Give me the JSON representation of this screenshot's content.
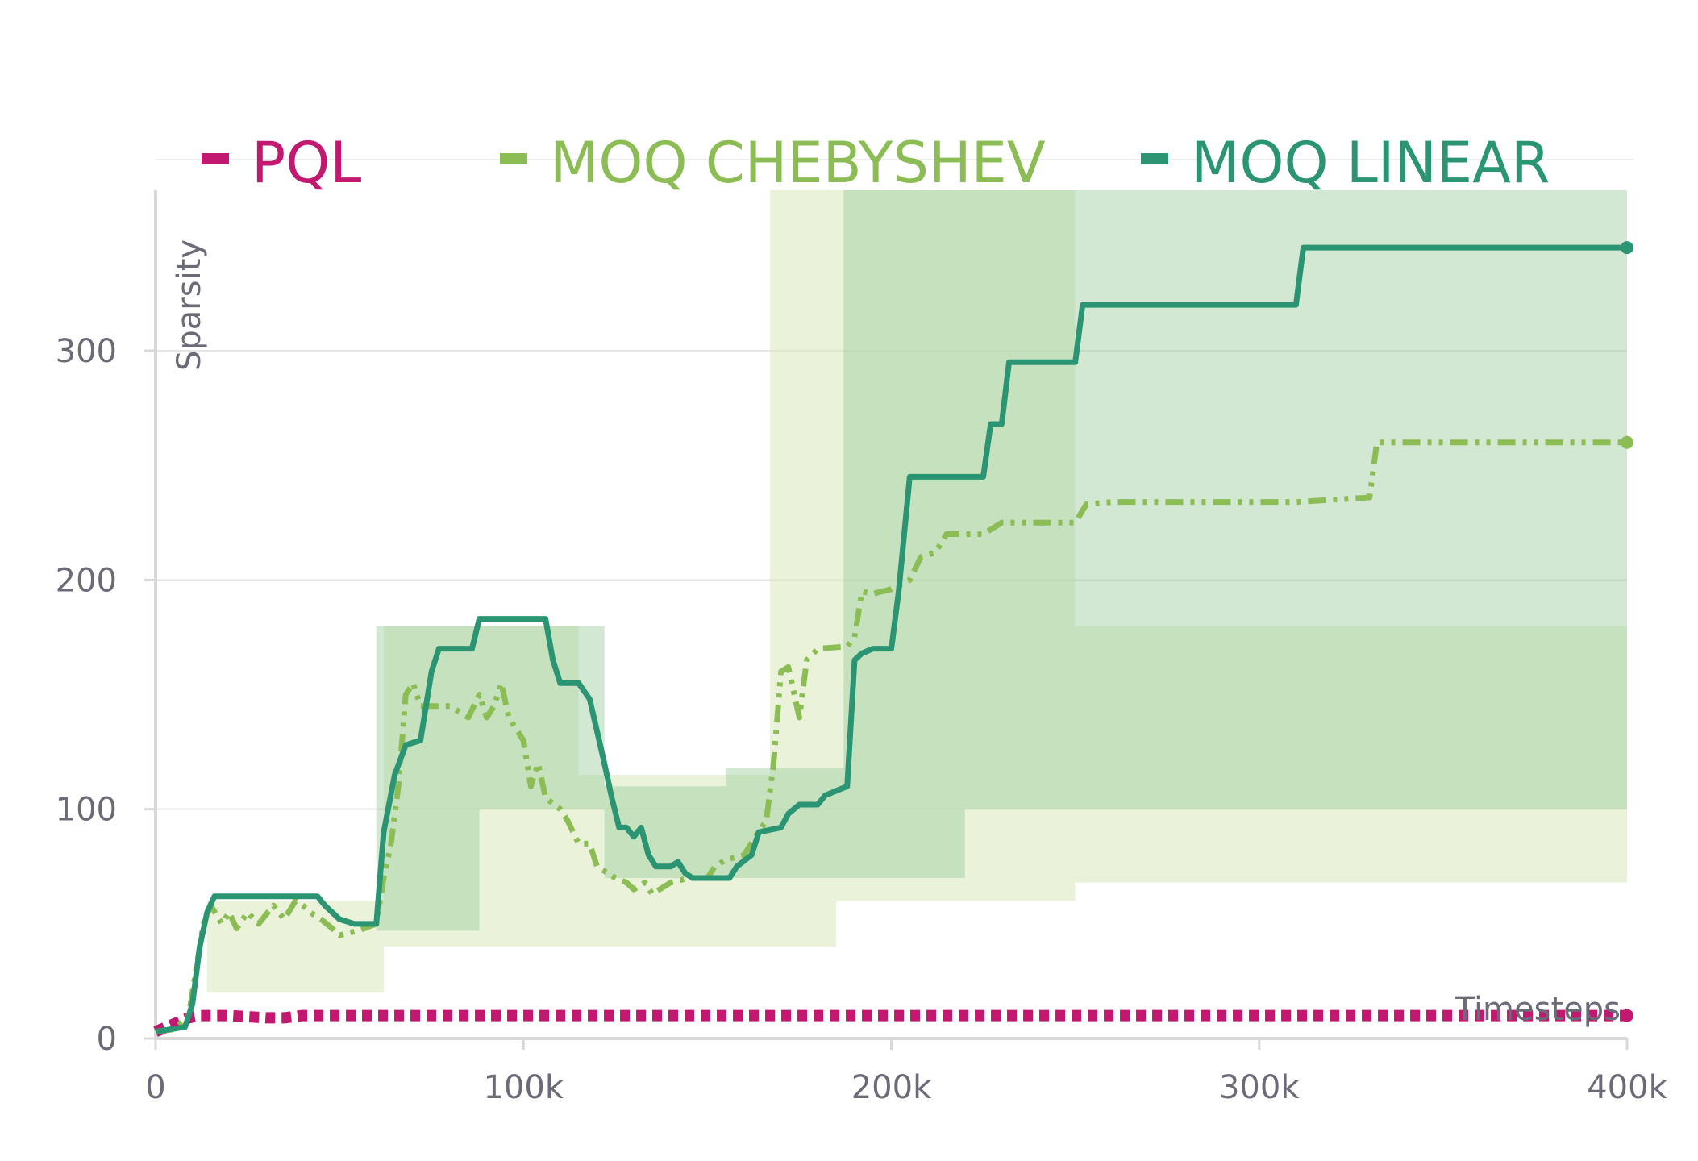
{
  "chart_data": {
    "type": "line",
    "xlabel": "Timesteps",
    "ylabel": "Sparsity",
    "xlim": [
      0,
      400000
    ],
    "ylim": [
      0,
      370
    ],
    "xticks": [
      0,
      100000,
      200000,
      300000,
      400000
    ],
    "xtick_labels": [
      "0",
      "100k",
      "200k",
      "300k",
      "400k"
    ],
    "yticks": [
      0,
      100,
      200,
      300
    ],
    "ytick_labels": [
      "0",
      "100",
      "200",
      "300"
    ],
    "grid": "horizontal",
    "legend_position": "top",
    "series": [
      {
        "name": "PQL",
        "color": "#c2186f",
        "style": "dotted",
        "points": [
          [
            0,
            3
          ],
          [
            3000,
            5
          ],
          [
            6000,
            7
          ],
          [
            9000,
            9
          ],
          [
            12000,
            10
          ],
          [
            20000,
            10
          ],
          [
            30000,
            9
          ],
          [
            35000,
            9
          ],
          [
            40000,
            10
          ],
          [
            60000,
            10
          ],
          [
            100000,
            10
          ],
          [
            200000,
            10
          ],
          [
            300000,
            10
          ],
          [
            400000,
            10
          ]
        ],
        "band": []
      },
      {
        "name": "MOQ CHEBYSHEV",
        "color": "#8cbd54",
        "style": "dashdot",
        "points": [
          [
            0,
            3
          ],
          [
            5000,
            4
          ],
          [
            9000,
            10
          ],
          [
            11000,
            30
          ],
          [
            13000,
            50
          ],
          [
            15000,
            58
          ],
          [
            18000,
            50
          ],
          [
            20000,
            55
          ],
          [
            22000,
            48
          ],
          [
            25000,
            55
          ],
          [
            28000,
            50
          ],
          [
            32000,
            58
          ],
          [
            35000,
            52
          ],
          [
            38000,
            60
          ],
          [
            40000,
            58
          ],
          [
            42000,
            55
          ],
          [
            45000,
            52
          ],
          [
            48000,
            48
          ],
          [
            50000,
            45
          ],
          [
            55000,
            47
          ],
          [
            60000,
            50
          ],
          [
            62000,
            70
          ],
          [
            64000,
            85
          ],
          [
            66000,
            110
          ],
          [
            68000,
            150
          ],
          [
            70000,
            155
          ],
          [
            72000,
            145
          ],
          [
            80000,
            145
          ],
          [
            85000,
            140
          ],
          [
            88000,
            150
          ],
          [
            90000,
            140
          ],
          [
            92000,
            145
          ],
          [
            94000,
            155
          ],
          [
            96000,
            140
          ],
          [
            98000,
            135
          ],
          [
            100000,
            130
          ],
          [
            102000,
            110
          ],
          [
            104000,
            120
          ],
          [
            106000,
            105
          ],
          [
            110000,
            100
          ],
          [
            112000,
            95
          ],
          [
            115000,
            85
          ],
          [
            118000,
            85
          ],
          [
            120000,
            75
          ],
          [
            125000,
            70
          ],
          [
            128000,
            68
          ],
          [
            130000,
            65
          ],
          [
            133000,
            68
          ],
          [
            135000,
            63
          ],
          [
            140000,
            68
          ],
          [
            145000,
            70
          ],
          [
            150000,
            70
          ],
          [
            152000,
            75
          ],
          [
            155000,
            78
          ],
          [
            160000,
            80
          ],
          [
            163000,
            88
          ],
          [
            166000,
            95
          ],
          [
            168000,
            120
          ],
          [
            170000,
            160
          ],
          [
            172000,
            162
          ],
          [
            175000,
            140
          ],
          [
            177000,
            165
          ],
          [
            180000,
            170
          ],
          [
            188000,
            171
          ],
          [
            190000,
            175
          ],
          [
            192000,
            195
          ],
          [
            195000,
            194
          ],
          [
            200000,
            196
          ],
          [
            205000,
            200
          ],
          [
            208000,
            210
          ],
          [
            212000,
            212
          ],
          [
            215000,
            220
          ],
          [
            225000,
            220
          ],
          [
            230000,
            225
          ],
          [
            250000,
            225
          ],
          [
            253000,
            233
          ],
          [
            260000,
            234
          ],
          [
            310000,
            234
          ],
          [
            330000,
            236
          ],
          [
            332000,
            260
          ],
          [
            400000,
            260
          ]
        ],
        "band": [
          [
            14000,
            20,
            60
          ],
          [
            60000,
            20,
            60
          ],
          [
            62000,
            40,
            180
          ],
          [
            100000,
            40,
            180
          ],
          [
            110000,
            40,
            180
          ],
          [
            115000,
            40,
            115
          ],
          [
            135000,
            40,
            115
          ],
          [
            140000,
            40,
            115
          ],
          [
            165000,
            40,
            115
          ],
          [
            167000,
            40,
            370
          ],
          [
            185000,
            60,
            370
          ],
          [
            200000,
            60,
            370
          ],
          [
            220000,
            60,
            370
          ],
          [
            250000,
            68,
            180
          ],
          [
            400000,
            68,
            120
          ]
        ]
      },
      {
        "name": "MOQ LINEAR",
        "color": "#2a9473",
        "style": "solid",
        "points": [
          [
            0,
            3
          ],
          [
            8000,
            5
          ],
          [
            10000,
            15
          ],
          [
            12000,
            40
          ],
          [
            14000,
            55
          ],
          [
            16000,
            62
          ],
          [
            30000,
            62
          ],
          [
            44000,
            62
          ],
          [
            46000,
            58
          ],
          [
            48000,
            55
          ],
          [
            50000,
            52
          ],
          [
            54000,
            50
          ],
          [
            60000,
            50
          ],
          [
            62000,
            90
          ],
          [
            65000,
            115
          ],
          [
            68000,
            128
          ],
          [
            72000,
            130
          ],
          [
            75000,
            160
          ],
          [
            77000,
            170
          ],
          [
            86000,
            170
          ],
          [
            88000,
            183
          ],
          [
            106000,
            183
          ],
          [
            108000,
            165
          ],
          [
            110000,
            155
          ],
          [
            115000,
            155
          ],
          [
            118000,
            148
          ],
          [
            122000,
            120
          ],
          [
            124000,
            105
          ],
          [
            126000,
            92
          ],
          [
            128000,
            92
          ],
          [
            130000,
            88
          ],
          [
            132000,
            92
          ],
          [
            134000,
            80
          ],
          [
            136000,
            75
          ],
          [
            140000,
            75
          ],
          [
            142000,
            77
          ],
          [
            144000,
            72
          ],
          [
            146000,
            70
          ],
          [
            152000,
            70
          ],
          [
            156000,
            70
          ],
          [
            158000,
            75
          ],
          [
            162000,
            80
          ],
          [
            164000,
            90
          ],
          [
            170000,
            92
          ],
          [
            172000,
            98
          ],
          [
            175000,
            102
          ],
          [
            180000,
            102
          ],
          [
            182000,
            106
          ],
          [
            188000,
            110
          ],
          [
            190000,
            165
          ],
          [
            192000,
            168
          ],
          [
            195000,
            170
          ],
          [
            200000,
            170
          ],
          [
            202000,
            195
          ],
          [
            205000,
            245
          ],
          [
            225000,
            245
          ],
          [
            227000,
            268
          ],
          [
            230000,
            268
          ],
          [
            232000,
            295
          ],
          [
            250000,
            295
          ],
          [
            252000,
            320
          ],
          [
            310000,
            320
          ],
          [
            312000,
            345
          ],
          [
            400000,
            345
          ]
        ],
        "band": [
          [
            60000,
            47,
            180
          ],
          [
            85000,
            47,
            180
          ],
          [
            88000,
            100,
            180
          ],
          [
            120000,
            100,
            180
          ],
          [
            122000,
            70,
            110
          ],
          [
            140000,
            70,
            110
          ],
          [
            150000,
            70,
            110
          ],
          [
            155000,
            70,
            118
          ],
          [
            185000,
            70,
            118
          ],
          [
            187000,
            70,
            370
          ],
          [
            220000,
            100,
            370
          ],
          [
            400000,
            118,
            370
          ]
        ]
      }
    ]
  }
}
